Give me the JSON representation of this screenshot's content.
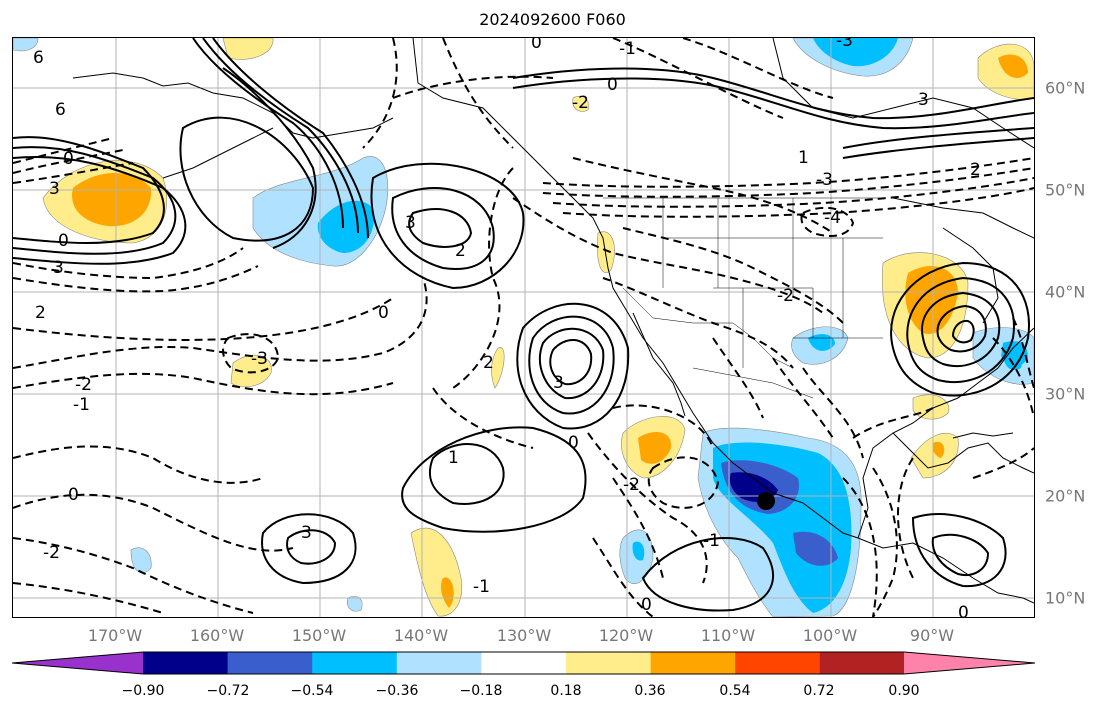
{
  "title": "2024092600 F060",
  "lat_labels": [
    "60°N",
    "50°N",
    "40°N",
    "30°N",
    "20°N",
    "10°N"
  ],
  "lon_labels": [
    "170°W",
    "160°W",
    "150°W",
    "140°W",
    "130°W",
    "120°W",
    "110°W",
    "100°W",
    "90°W"
  ],
  "colorbar": {
    "colors": [
      "#9932cc",
      "#00008b",
      "#3a5fcd",
      "#00bfff",
      "#b0e2ff",
      "#ffffff",
      "#ffec8b",
      "#ffa500",
      "#ff4500",
      "#b22222",
      "#ff82ab"
    ],
    "tick_labels": [
      "−0.90",
      "−0.72",
      "−0.54",
      "−0.36",
      "−0.18",
      "0.18",
      "0.36",
      "0.54",
      "0.72",
      "0.90"
    ]
  },
  "contour_labels": {
    "a": "6",
    "b": "6",
    "c": "3",
    "d": "3",
    "e": "3",
    "f": "2",
    "g": "2",
    "h": "0",
    "i": "0",
    "j": "0",
    "k": "-1",
    "l": "-1",
    "m": "-2",
    "n": "-2",
    "o": "-3",
    "p": "-3",
    "q": "3",
    "r": "2",
    "s": "1",
    "t": "0",
    "u": "-2",
    "v": "-4",
    "w": "3",
    "x": "-3",
    "y": "2",
    "z": "1",
    "aa": "0",
    "ab": "-1",
    "ac": "-2",
    "ad": "0",
    "ae": "3",
    "af": "0",
    "ag": "-2",
    "ah": "-1",
    "ai": "0",
    "aj": "0"
  }
}
